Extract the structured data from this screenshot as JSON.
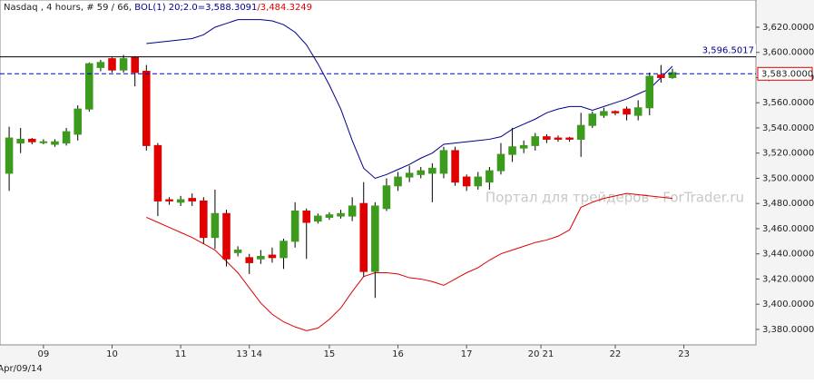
{
  "chart_data": {
    "type": "candlestick",
    "title": "Nasdaq , 4 hours, # 59 / 66, ",
    "indicator_upper_label": "BOL(1) 20;2.0=3,588.3091",
    "indicator_lower_label": "/3,484.3249",
    "watermark": "Портал для трейдеров - ForTrader.ru",
    "date_label": "Apr/09/14",
    "up_color": "#3c9a1c",
    "down_color": "#e00000",
    "x": [
      0,
      1,
      2,
      3,
      4,
      5,
      6,
      7,
      8,
      9,
      10,
      11,
      12,
      13,
      14,
      15,
      16,
      17,
      18,
      19,
      20,
      21,
      22,
      23,
      24,
      25,
      26,
      27,
      28,
      29,
      30,
      31,
      32,
      33,
      34,
      35,
      36,
      37,
      38,
      39,
      40,
      41,
      42,
      43,
      44,
      45,
      46,
      47,
      48,
      49,
      50,
      51,
      52,
      53,
      54,
      55,
      56,
      57,
      58
    ],
    "open": [
      3504,
      3528,
      3531,
      3529,
      3527,
      3528,
      3535,
      3555,
      3588,
      3595,
      3586,
      3596,
      3585,
      3526,
      3483,
      3481,
      3484,
      3482,
      3453,
      3472,
      3441,
      3437,
      3436,
      3439,
      3437,
      3450,
      3474,
      3466,
      3469,
      3470,
      3470,
      3480,
      3426,
      3476,
      3494,
      3501,
      3503,
      3504,
      3504,
      3522,
      3501,
      3494,
      3497,
      3506,
      3519,
      3524,
      3526,
      3533,
      3532,
      3532,
      3531,
      3542,
      3550,
      3553,
      3555,
      3550,
      3556,
      3582,
      3580
    ],
    "high": [
      3541,
      3540,
      3532,
      3531,
      3531,
      3540,
      3558,
      3592,
      3594,
      3596,
      3598,
      3597,
      3590,
      3528,
      3485,
      3486,
      3488,
      3485,
      3491,
      3475,
      3446,
      3440,
      3443,
      3445,
      3452,
      3481,
      3476,
      3472,
      3473,
      3475,
      3485,
      3497,
      3481,
      3500,
      3505,
      3510,
      3509,
      3512,
      3525,
      3525,
      3503,
      3505,
      3509,
      3528,
      3540,
      3530,
      3536,
      3535,
      3534,
      3533,
      3552,
      3553,
      3556,
      3554,
      3557,
      3562,
      3584,
      3590,
      3587
    ],
    "low": [
      3490,
      3520,
      3527,
      3527,
      3525,
      3526,
      3530,
      3553,
      3585,
      3584,
      3584,
      3573,
      3522,
      3470,
      3479,
      3478,
      3478,
      3448,
      3444,
      3430,
      3438,
      3424,
      3432,
      3433,
      3428,
      3445,
      3436,
      3464,
      3467,
      3468,
      3466,
      3422,
      3405,
      3474,
      3490,
      3497,
      3500,
      3481,
      3500,
      3494,
      3490,
      3491,
      3491,
      3503,
      3513,
      3520,
      3522,
      3528,
      3529,
      3529,
      3517,
      3540,
      3548,
      3550,
      3546,
      3546,
      3550,
      3576,
      3579
    ],
    "close": [
      3532,
      3531,
      3529,
      3529,
      3529,
      3537,
      3555,
      3591,
      3592,
      3586,
      3595,
      3584,
      3526,
      3482,
      3482,
      3483,
      3482,
      3453,
      3472,
      3436,
      3443,
      3433,
      3438,
      3437,
      3450,
      3474,
      3465,
      3470,
      3471,
      3472,
      3478,
      3426,
      3478,
      3494,
      3501,
      3504,
      3506,
      3508,
      3522,
      3497,
      3494,
      3501,
      3506,
      3519,
      3525,
      3526,
      3533,
      3531,
      3531,
      3531,
      3542,
      3551,
      3553,
      3552,
      3551,
      3556,
      3581,
      3580,
      3584
    ],
    "bands": {
      "upper": {
        "color": "#00008b",
        "values": [
          null,
          null,
          null,
          null,
          null,
          null,
          null,
          null,
          null,
          null,
          null,
          null,
          3607,
          3608,
          3609,
          3610,
          3611,
          3614,
          3620,
          3623,
          3626,
          3626,
          3626,
          3625,
          3622,
          3616,
          3606,
          3591,
          3574,
          3555,
          3530,
          3508,
          3500,
          3503,
          3507,
          3511,
          3516,
          3520,
          3527,
          3528,
          3529,
          3530,
          3531,
          3533,
          3539,
          3543,
          3547,
          3552,
          3555,
          3557,
          3557,
          3554,
          3557,
          3560,
          3563,
          3567,
          3571,
          3580,
          3589
        ]
      },
      "lower": {
        "color": "#dd0000",
        "values": [
          null,
          null,
          null,
          null,
          null,
          null,
          null,
          null,
          null,
          null,
          null,
          null,
          3469,
          3465,
          3461,
          3457,
          3453,
          3448,
          3443,
          3434,
          3425,
          3413,
          3401,
          3392,
          3386,
          3382,
          3379,
          3381,
          3388,
          3397,
          3410,
          3422,
          3425,
          3425,
          3424,
          3421,
          3420,
          3418,
          3415,
          3420,
          3425,
          3429,
          3435,
          3440,
          3443,
          3446,
          3449,
          3451,
          3454,
          3459,
          3477,
          3481,
          3484,
          3486,
          3488,
          3487,
          3486,
          3485,
          3484
        ]
      }
    },
    "hlines": [
      {
        "value": 3596.5017,
        "label": "3,596.5017",
        "color": "#000000",
        "dashed": false
      },
      {
        "value": 3583,
        "label": "3,583.0000",
        "color": "#0000cc",
        "dashed": true
      }
    ],
    "xlim": [
      -0.8,
      65.3
    ],
    "xticks": [
      {
        "value": 3,
        "label": "09"
      },
      {
        "value": 9,
        "label": "10"
      },
      {
        "value": 15,
        "label": "11"
      },
      {
        "value": 21,
        "label": "13 14"
      },
      {
        "value": 28,
        "label": "15"
      },
      {
        "value": 34,
        "label": "16"
      },
      {
        "value": 40,
        "label": "17"
      },
      {
        "value": 46.5,
        "label": "20 21"
      },
      {
        "value": 53,
        "label": "22"
      },
      {
        "value": 59,
        "label": "23"
      }
    ],
    "ylim": [
      3367.7,
      3641.6
    ],
    "yticks": [
      {
        "value": 3380,
        "label": "3,380.0000"
      },
      {
        "value": 3400,
        "label": "3,400.0000"
      },
      {
        "value": 3420,
        "label": "3,420.0000"
      },
      {
        "value": 3440,
        "label": "3,440.0000"
      },
      {
        "value": 3460,
        "label": "3,460.0000"
      },
      {
        "value": 3480,
        "label": "3,480.0000"
      },
      {
        "value": 3500,
        "label": "3,500.0000"
      },
      {
        "value": 3520,
        "label": "3,520.0000"
      },
      {
        "value": 3540,
        "label": "3,540.0000"
      },
      {
        "value": 3560,
        "label": "3,560.0000"
      },
      {
        "value": 3580,
        "label": "3,580.0000"
      },
      {
        "value": 3600,
        "label": "3,600.0000"
      },
      {
        "value": 3620,
        "label": "3,620.0000"
      }
    ],
    "grid": false
  }
}
